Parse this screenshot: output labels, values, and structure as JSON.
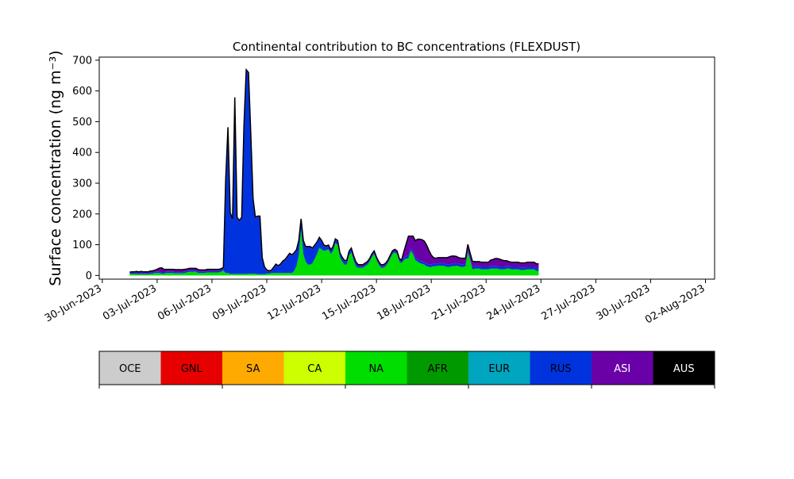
{
  "chart_data": {
    "type": "area",
    "title": "Continental contribution to BC concentrations (FLEXDUST)",
    "ylabel": "Surface concentration (ng m⁻³)",
    "xlabel": "",
    "x_start": "2023-07-01T12:00",
    "x_step_hours": 3,
    "x_ticks": [
      "30-Jun-2023",
      "03-Jul-2023",
      "06-Jul-2023",
      "09-Jul-2023",
      "12-Jul-2023",
      "15-Jul-2023",
      "18-Jul-2023",
      "21-Jul-2023",
      "24-Jul-2023",
      "27-Jul-2023",
      "30-Jul-2023",
      "02-Aug-2023"
    ],
    "xlim": [
      "2023-06-29T20:00",
      "2023-08-02T12:00"
    ],
    "ylim": [
      -12,
      710
    ],
    "y_ticks": [
      0,
      100,
      200,
      300,
      400,
      500,
      600,
      700
    ],
    "stack_order": [
      "NA",
      "RUS",
      "ASI"
    ],
    "series": [
      {
        "name": "NA",
        "color": "#00dd00",
        "values": [
          5,
          5,
          5,
          5,
          4,
          4,
          4,
          4,
          4,
          5,
          6,
          8,
          8,
          8,
          6,
          6,
          8,
          8,
          8,
          8,
          7,
          7,
          7,
          7,
          8,
          10,
          12,
          12,
          12,
          12,
          8,
          8,
          8,
          8,
          10,
          10,
          10,
          10,
          10,
          10,
          12,
          16,
          8,
          8,
          5,
          5,
          5,
          5,
          5,
          5,
          5,
          5,
          6,
          6,
          6,
          6,
          4,
          4,
          4,
          4,
          6,
          6,
          8,
          8,
          8,
          8,
          8,
          8,
          8,
          8,
          8,
          8,
          15,
          30,
          65,
          150,
          70,
          45,
          35,
          35,
          40,
          55,
          70,
          90,
          85,
          80,
          82,
          85,
          70,
          80,
          105,
          100,
          60,
          45,
          35,
          35,
          65,
          75,
          50,
          30,
          25,
          25,
          25,
          30,
          35,
          45,
          60,
          70,
          50,
          35,
          25,
          25,
          30,
          40,
          55,
          70,
          75,
          70,
          45,
          40,
          50,
          55,
          55,
          80,
          70,
          50,
          45,
          40,
          38,
          35,
          30,
          28,
          28,
          30,
          30,
          32,
          32,
          32,
          30,
          28,
          28,
          30,
          30,
          32,
          30,
          28,
          28,
          30,
          75,
          50,
          20,
          22,
          22,
          22,
          20,
          20,
          20,
          20,
          22,
          22,
          22,
          22,
          20,
          20,
          20,
          22,
          22,
          20,
          20,
          20,
          20,
          18,
          18,
          18,
          20,
          20,
          20,
          20,
          15,
          15
        ]
      },
      {
        "name": "RUS",
        "color": "#0033dd",
        "values": [
          4,
          4,
          4,
          4,
          4,
          4,
          4,
          4,
          4,
          4,
          4,
          4,
          4,
          4,
          4,
          4,
          4,
          4,
          4,
          4,
          4,
          4,
          4,
          4,
          4,
          4,
          4,
          4,
          4,
          4,
          4,
          4,
          4,
          4,
          4,
          4,
          4,
          4,
          4,
          4,
          4,
          4,
          300,
          470,
          195,
          175,
          570,
          180,
          170,
          180,
          480,
          660,
          650,
          450,
          240,
          180,
          185,
          185,
          50,
          20,
          8,
          5,
          5,
          15,
          25,
          20,
          25,
          35,
          40,
          50,
          60,
          55,
          55,
          50,
          45,
          30,
          40,
          45,
          55,
          55,
          45,
          40,
          35,
          30,
          25,
          15,
          10,
          10,
          10,
          10,
          10,
          10,
          10,
          10,
          10,
          10,
          10,
          10,
          10,
          10,
          5,
          5,
          5,
          5,
          5,
          5,
          5,
          5,
          5,
          5,
          5,
          5,
          5,
          5,
          5,
          5,
          5,
          5,
          5,
          5,
          8,
          8,
          8,
          8,
          8,
          8,
          8,
          8,
          8,
          8,
          8,
          8,
          8,
          8,
          8,
          8,
          8,
          8,
          8,
          8,
          8,
          8,
          8,
          8,
          8,
          8,
          8,
          8,
          8,
          8,
          8,
          8,
          8,
          8,
          8,
          8,
          8,
          8,
          8,
          8,
          8,
          8,
          8,
          8,
          8,
          8,
          8,
          8,
          8,
          8,
          8,
          8,
          8,
          8,
          8,
          8,
          8,
          8,
          8,
          8
        ]
      },
      {
        "name": "ASI",
        "color": "#6a00a8",
        "values": [
          2,
          3,
          3,
          4,
          4,
          5,
          4,
          4,
          4,
          5,
          5,
          5,
          8,
          12,
          15,
          10,
          8,
          8,
          8,
          8,
          8,
          8,
          8,
          8,
          8,
          7,
          7,
          7,
          7,
          7,
          7,
          6,
          6,
          6,
          6,
          6,
          6,
          6,
          6,
          6,
          6,
          6,
          4,
          4,
          4,
          4,
          4,
          4,
          4,
          4,
          4,
          4,
          4,
          4,
          4,
          4,
          4,
          4,
          4,
          4,
          4,
          4,
          4,
          4,
          4,
          4,
          4,
          4,
          4,
          4,
          4,
          4,
          4,
          4,
          4,
          4,
          4,
          4,
          4,
          4,
          4,
          4,
          4,
          4,
          4,
          4,
          4,
          4,
          4,
          4,
          4,
          4,
          4,
          4,
          4,
          4,
          4,
          4,
          4,
          4,
          5,
          5,
          5,
          5,
          5,
          5,
          5,
          5,
          5,
          5,
          5,
          5,
          5,
          5,
          5,
          5,
          5,
          5,
          5,
          5,
          20,
          40,
          65,
          40,
          50,
          55,
          65,
          70,
          70,
          68,
          60,
          45,
          30,
          20,
          18,
          18,
          18,
          18,
          20,
          22,
          25,
          25,
          25,
          22,
          20,
          20,
          20,
          18,
          18,
          15,
          18,
          15,
          15,
          15,
          15,
          15,
          15,
          15,
          20,
          22,
          25,
          25,
          25,
          22,
          20,
          18,
          15,
          15,
          15,
          15,
          15,
          15,
          15,
          15,
          15,
          15,
          15,
          15,
          15,
          15
        ]
      }
    ],
    "legend": [
      {
        "name": "OCE",
        "color": "#cccccc",
        "text_color": "#000000"
      },
      {
        "name": "GNL",
        "color": "#e60000",
        "text_color": "#000000"
      },
      {
        "name": "SA",
        "color": "#ffaa00",
        "text_color": "#000000"
      },
      {
        "name": "CA",
        "color": "#ccff00",
        "text_color": "#000000"
      },
      {
        "name": "NA",
        "color": "#00dd00",
        "text_color": "#000000"
      },
      {
        "name": "AFR",
        "color": "#009900",
        "text_color": "#000000"
      },
      {
        "name": "EUR",
        "color": "#00a6bf",
        "text_color": "#000000"
      },
      {
        "name": "RUS",
        "color": "#0033dd",
        "text_color": "#000000"
      },
      {
        "name": "ASI",
        "color": "#6a00a8",
        "text_color": "#ffffff"
      },
      {
        "name": "AUS",
        "color": "#000000",
        "text_color": "#ffffff"
      }
    ],
    "legend_placement": "bottom",
    "grid": false
  }
}
